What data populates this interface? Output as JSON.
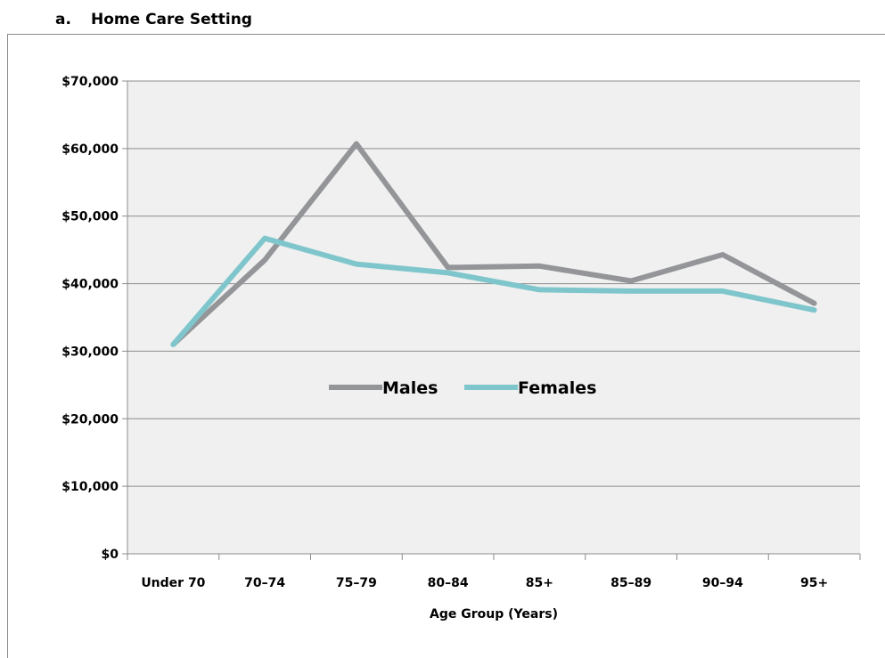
{
  "heading": {
    "prefix": "a.",
    "title": "Home Care Setting"
  },
  "colors": {
    "males": "#939598",
    "females": "#7fc6cc",
    "plot_background": "#f0f0f0",
    "gridline": "#8c8c8c"
  },
  "chart_data": {
    "type": "line",
    "title": "",
    "xlabel": "Age Group (Years)",
    "ylabel": "",
    "categories": [
      "Under 70",
      "70–74",
      "75–79",
      "80–84",
      "85+",
      "85–89",
      "90–94",
      "95+"
    ],
    "ylim": [
      0,
      70000
    ],
    "yticks": [
      0,
      10000,
      20000,
      30000,
      40000,
      50000,
      60000,
      70000
    ],
    "ytick_labels": [
      "$0",
      "$10,000",
      "$20,000",
      "$30,000",
      "$40,000",
      "$50,000",
      "$60,000",
      "$70,000"
    ],
    "grid": true,
    "legend_position": "center",
    "series": [
      {
        "name": "Males",
        "color": "#939598",
        "values": [
          31000,
          43500,
          60700,
          42400,
          42600,
          40400,
          44300,
          37100
        ]
      },
      {
        "name": "Females",
        "color": "#7fc6cc",
        "values": [
          31000,
          46700,
          42900,
          41600,
          39100,
          38900,
          38900,
          36100
        ]
      }
    ]
  }
}
